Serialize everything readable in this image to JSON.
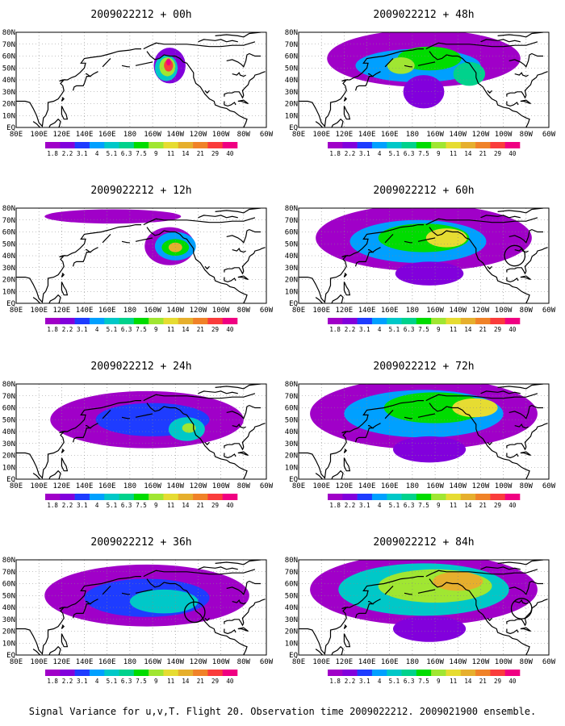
{
  "caption": "Signal Variance for u,v,T. Flight 20. Observation time 2009022212. 2009021900 ensemble.",
  "longitude_labels": [
    "80E",
    "100E",
    "120E",
    "140E",
    "160E",
    "180",
    "160W",
    "140W",
    "120W",
    "100W",
    "80W",
    "60W"
  ],
  "latitude_labels": [
    "EQ",
    "10N",
    "20N",
    "30N",
    "40N",
    "50N",
    "60N",
    "70N",
    "80N"
  ],
  "colorbar": {
    "labels": [
      "1.8",
      "2.2",
      "3.1",
      "4",
      "5.1",
      "6.3",
      "7.5",
      "9",
      "11",
      "14",
      "21",
      "29",
      "40"
    ],
    "colors": [
      "#a000c8",
      "#8200dc",
      "#1e3cff",
      "#00a0ff",
      "#00c8c8",
      "#00d28c",
      "#00dc00",
      "#a0e632",
      "#e6dc32",
      "#e6af2d",
      "#f08228",
      "#fa3c3c",
      "#f00082"
    ]
  },
  "chart_data": [
    {
      "type": "heatmap",
      "title": "2009022212 + 00h",
      "lead_hours": 0,
      "blobs": [
        {
          "lon": -145,
          "lat": 52,
          "rx": 14,
          "ry": 15,
          "level": 1
        },
        {
          "lon": -148,
          "lat": 50,
          "rx": 10,
          "ry": 11,
          "level": 4
        },
        {
          "lon": -147,
          "lat": 51,
          "rx": 7,
          "ry": 8,
          "level": 7
        },
        {
          "lon": -146,
          "lat": 52,
          "rx": 4,
          "ry": 5,
          "level": 11
        },
        {
          "lon": -146,
          "lat": 55,
          "rx": 2,
          "ry": 3,
          "level": 12
        }
      ],
      "circle": null
    },
    {
      "type": "heatmap",
      "title": "2009022212 + 48h",
      "lead_hours": 48,
      "blobs": [
        {
          "lon": -170,
          "lat": 58,
          "rx": 85,
          "ry": 24,
          "level": 0
        },
        {
          "lon": -175,
          "lat": 52,
          "rx": 55,
          "ry": 14,
          "level": 3
        },
        {
          "lon": -165,
          "lat": 58,
          "rx": 28,
          "ry": 10,
          "level": 6
        },
        {
          "lon": 170,
          "lat": 52,
          "rx": 12,
          "ry": 7,
          "level": 7
        },
        {
          "lon": -130,
          "lat": 45,
          "rx": 14,
          "ry": 10,
          "level": 5
        },
        {
          "lon": -170,
          "lat": 30,
          "rx": 18,
          "ry": 14,
          "level": 1
        }
      ],
      "circle": null
    },
    {
      "type": "heatmap",
      "title": "2009022212 + 12h",
      "lead_hours": 12,
      "blobs": [
        {
          "lon": -145,
          "lat": 48,
          "rx": 22,
          "ry": 16,
          "level": 0
        },
        {
          "lon": -140,
          "lat": 48,
          "rx": 18,
          "ry": 12,
          "level": 3
        },
        {
          "lon": -140,
          "lat": 47,
          "rx": 12,
          "ry": 7,
          "level": 6
        },
        {
          "lon": -140,
          "lat": 47,
          "rx": 6,
          "ry": 4,
          "level": 9
        },
        {
          "lon": 165,
          "lat": 73,
          "rx": 60,
          "ry": 6,
          "level": 0
        }
      ],
      "circle": null
    },
    {
      "type": "heatmap",
      "title": "2009022212 + 60h",
      "lead_hours": 60,
      "blobs": [
        {
          "lon": -170,
          "lat": 55,
          "rx": 95,
          "ry": 28,
          "level": 0
        },
        {
          "lon": -175,
          "lat": 52,
          "rx": 60,
          "ry": 18,
          "level": 3
        },
        {
          "lon": -170,
          "lat": 55,
          "rx": 40,
          "ry": 12,
          "level": 6
        },
        {
          "lon": -150,
          "lat": 55,
          "rx": 18,
          "ry": 8,
          "level": 8
        },
        {
          "lon": -165,
          "lat": 25,
          "rx": 30,
          "ry": 10,
          "level": 1
        }
      ],
      "circle": {
        "lon": -90,
        "lat": 40,
        "r": 9
      }
    },
    {
      "type": "heatmap",
      "title": "2009022212 + 24h",
      "lead_hours": 24,
      "blobs": [
        {
          "lon": -165,
          "lat": 50,
          "rx": 85,
          "ry": 24,
          "level": 0
        },
        {
          "lon": -160,
          "lat": 50,
          "rx": 50,
          "ry": 14,
          "level": 2
        },
        {
          "lon": -130,
          "lat": 42,
          "rx": 16,
          "ry": 10,
          "level": 4
        },
        {
          "lon": -128,
          "lat": 43,
          "rx": 6,
          "ry": 4,
          "level": 7
        }
      ],
      "circle": null
    },
    {
      "type": "heatmap",
      "title": "2009022212 + 72h",
      "lead_hours": 72,
      "blobs": [
        {
          "lon": -170,
          "lat": 55,
          "rx": 100,
          "ry": 30,
          "level": 0
        },
        {
          "lon": -170,
          "lat": 55,
          "rx": 70,
          "ry": 20,
          "level": 3
        },
        {
          "lon": -160,
          "lat": 60,
          "rx": 45,
          "ry": 13,
          "level": 6
        },
        {
          "lon": -125,
          "lat": 60,
          "rx": 20,
          "ry": 8,
          "level": 8
        },
        {
          "lon": -165,
          "lat": 25,
          "rx": 32,
          "ry": 11,
          "level": 1
        }
      ],
      "circle": null
    },
    {
      "type": "heatmap",
      "title": "2009022212 + 36h",
      "lead_hours": 36,
      "blobs": [
        {
          "lon": -165,
          "lat": 50,
          "rx": 90,
          "ry": 26,
          "level": 0
        },
        {
          "lon": -165,
          "lat": 48,
          "rx": 55,
          "ry": 16,
          "level": 2
        },
        {
          "lon": -150,
          "lat": 45,
          "rx": 30,
          "ry": 10,
          "level": 4
        }
      ],
      "circle": {
        "lon": -123,
        "lat": 36,
        "r": 9
      }
    },
    {
      "type": "heatmap",
      "title": "2009022212 + 84h",
      "lead_hours": 84,
      "blobs": [
        {
          "lon": -170,
          "lat": 55,
          "rx": 100,
          "ry": 30,
          "level": 0
        },
        {
          "lon": -170,
          "lat": 55,
          "rx": 75,
          "ry": 22,
          "level": 4
        },
        {
          "lon": -160,
          "lat": 58,
          "rx": 50,
          "ry": 14,
          "level": 7
        },
        {
          "lon": -140,
          "lat": 62,
          "rx": 22,
          "ry": 8,
          "level": 9
        },
        {
          "lon": -165,
          "lat": 22,
          "rx": 32,
          "ry": 11,
          "level": 1
        }
      ],
      "circle": {
        "lon": -84,
        "lat": 39,
        "r": 9
      }
    }
  ]
}
